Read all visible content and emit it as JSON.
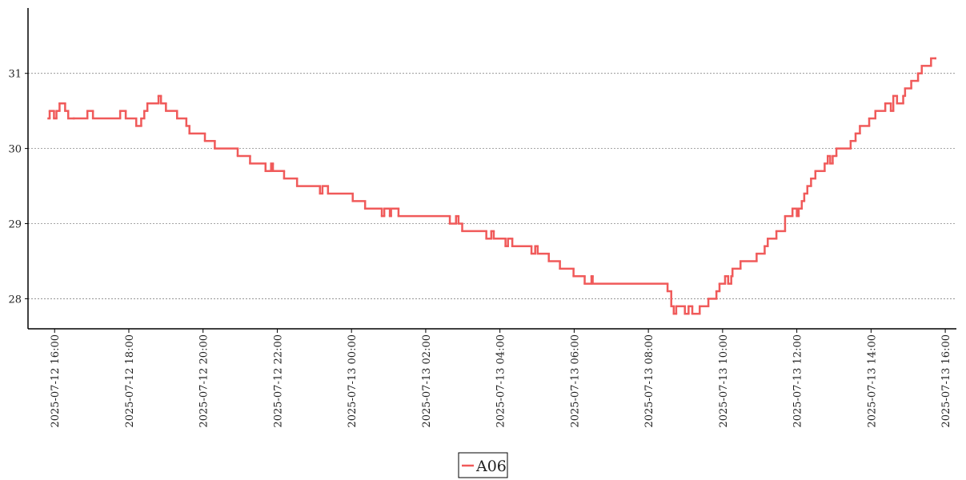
{
  "chart_data": {
    "type": "step-line",
    "x": [
      "2025-07-12 15:50",
      "2025-07-12 15:52",
      "2025-07-12 15:59",
      "2025-07-12 16:03",
      "2025-07-12 16:08",
      "2025-07-12 16:17",
      "2025-07-12 16:22",
      "2025-07-12 16:31",
      "2025-07-12 16:53",
      "2025-07-12 17:02",
      "2025-07-12 17:46",
      "2025-07-12 17:55",
      "2025-07-12 18:12",
      "2025-07-12 18:20",
      "2025-07-12 18:25",
      "2025-07-12 18:30",
      "2025-07-12 18:48",
      "2025-07-12 18:52",
      "2025-07-12 19:00",
      "2025-07-12 19:18",
      "2025-07-12 19:33",
      "2025-07-12 19:38",
      "2025-07-12 20:03",
      "2025-07-12 20:19",
      "2025-07-12 20:56",
      "2025-07-12 21:16",
      "2025-07-12 21:41",
      "2025-07-12 21:50",
      "2025-07-12 21:53",
      "2025-07-12 22:11",
      "2025-07-12 22:32",
      "2025-07-12 23:09",
      "2025-07-12 23:13",
      "2025-07-12 23:22",
      "2025-07-13 00:02",
      "2025-07-13 00:22",
      "2025-07-13 00:49",
      "2025-07-13 00:53",
      "2025-07-13 01:02",
      "2025-07-13 01:04",
      "2025-07-13 01:16",
      "2025-07-13 02:39",
      "2025-07-13 02:49",
      "2025-07-13 02:53",
      "2025-07-13 02:59",
      "2025-07-13 03:38",
      "2025-07-13 03:46",
      "2025-07-13 03:50",
      "2025-07-13 04:09",
      "2025-07-13 04:13",
      "2025-07-13 04:20",
      "2025-07-13 04:51",
      "2025-07-13 04:57",
      "2025-07-13 05:01",
      "2025-07-13 05:19",
      "2025-07-13 05:37",
      "2025-07-13 05:59",
      "2025-07-13 06:17",
      "2025-07-13 06:28",
      "2025-07-13 06:30",
      "2025-07-13 08:31",
      "2025-07-13 08:37",
      "2025-07-13 08:41",
      "2025-07-13 08:45",
      "2025-07-13 08:59",
      "2025-07-13 09:05",
      "2025-07-13 09:11",
      "2025-07-13 09:23",
      "2025-07-13 09:37",
      "2025-07-13 09:50",
      "2025-07-13 09:55",
      "2025-07-13 10:04",
      "2025-07-13 10:09",
      "2025-07-13 10:14",
      "2025-07-13 10:16",
      "2025-07-13 10:29",
      "2025-07-13 10:55",
      "2025-07-13 11:08",
      "2025-07-13 11:13",
      "2025-07-13 11:27",
      "2025-07-13 11:41",
      "2025-07-13 11:53",
      "2025-07-13 12:00",
      "2025-07-13 12:03",
      "2025-07-13 12:08",
      "2025-07-13 12:12",
      "2025-07-13 12:17",
      "2025-07-13 12:23",
      "2025-07-13 12:30",
      "2025-07-13 12:45",
      "2025-07-13 12:50",
      "2025-07-13 12:54",
      "2025-07-13 12:58",
      "2025-07-13 13:04",
      "2025-07-13 13:27",
      "2025-07-13 13:35",
      "2025-07-13 13:42",
      "2025-07-13 13:57",
      "2025-07-13 14:07",
      "2025-07-13 14:23",
      "2025-07-13 14:32",
      "2025-07-13 14:36",
      "2025-07-13 14:42",
      "2025-07-13 14:52",
      "2025-07-13 14:55",
      "2025-07-13 15:05",
      "2025-07-13 15:16",
      "2025-07-13 15:22",
      "2025-07-13 15:37",
      "2025-07-13 15:44"
    ],
    "series": [
      {
        "name": "A06",
        "color": "#f05a5a",
        "values": [
          30.4,
          30.5,
          30.4,
          30.5,
          30.6,
          30.5,
          30.4,
          30.4,
          30.5,
          30.4,
          30.5,
          30.4,
          30.3,
          30.4,
          30.5,
          30.6,
          30.7,
          30.6,
          30.5,
          30.4,
          30.3,
          30.2,
          30.1,
          30.0,
          29.9,
          29.8,
          29.7,
          29.8,
          29.7,
          29.6,
          29.5,
          29.4,
          29.5,
          29.4,
          29.3,
          29.2,
          29.1,
          29.2,
          29.1,
          29.2,
          29.1,
          29.0,
          29.1,
          29.0,
          28.9,
          28.8,
          28.9,
          28.8,
          28.7,
          28.8,
          28.7,
          28.6,
          28.7,
          28.6,
          28.5,
          28.4,
          28.3,
          28.2,
          28.3,
          28.2,
          28.1,
          27.9,
          27.8,
          27.9,
          27.8,
          27.9,
          27.8,
          27.9,
          28.0,
          28.1,
          28.2,
          28.3,
          28.2,
          28.3,
          28.4,
          28.5,
          28.6,
          28.7,
          28.8,
          28.9,
          29.1,
          29.2,
          29.1,
          29.2,
          29.3,
          29.4,
          29.5,
          29.6,
          29.7,
          29.8,
          29.9,
          29.8,
          29.9,
          30.0,
          30.1,
          30.2,
          30.3,
          30.4,
          30.5,
          30.6,
          30.5,
          30.7,
          30.6,
          30.7,
          30.8,
          30.9,
          31.0,
          31.1,
          31.2,
          31.2
        ]
      }
    ],
    "xlim": [
      "2025-07-12 15:17",
      "2025-07-13 16:18"
    ],
    "xticks": [
      "2025-07-12 16:00",
      "2025-07-12 18:00",
      "2025-07-12 20:00",
      "2025-07-12 22:00",
      "2025-07-13 00:00",
      "2025-07-13 02:00",
      "2025-07-13 04:00",
      "2025-07-13 06:00",
      "2025-07-13 08:00",
      "2025-07-13 10:00",
      "2025-07-13 12:00",
      "2025-07-13 14:00",
      "2025-07-13 16:00"
    ],
    "ylim": [
      27.6,
      31.87
    ],
    "yticks": [
      28,
      29,
      30,
      31
    ],
    "grid": true,
    "legend": "bottom"
  }
}
